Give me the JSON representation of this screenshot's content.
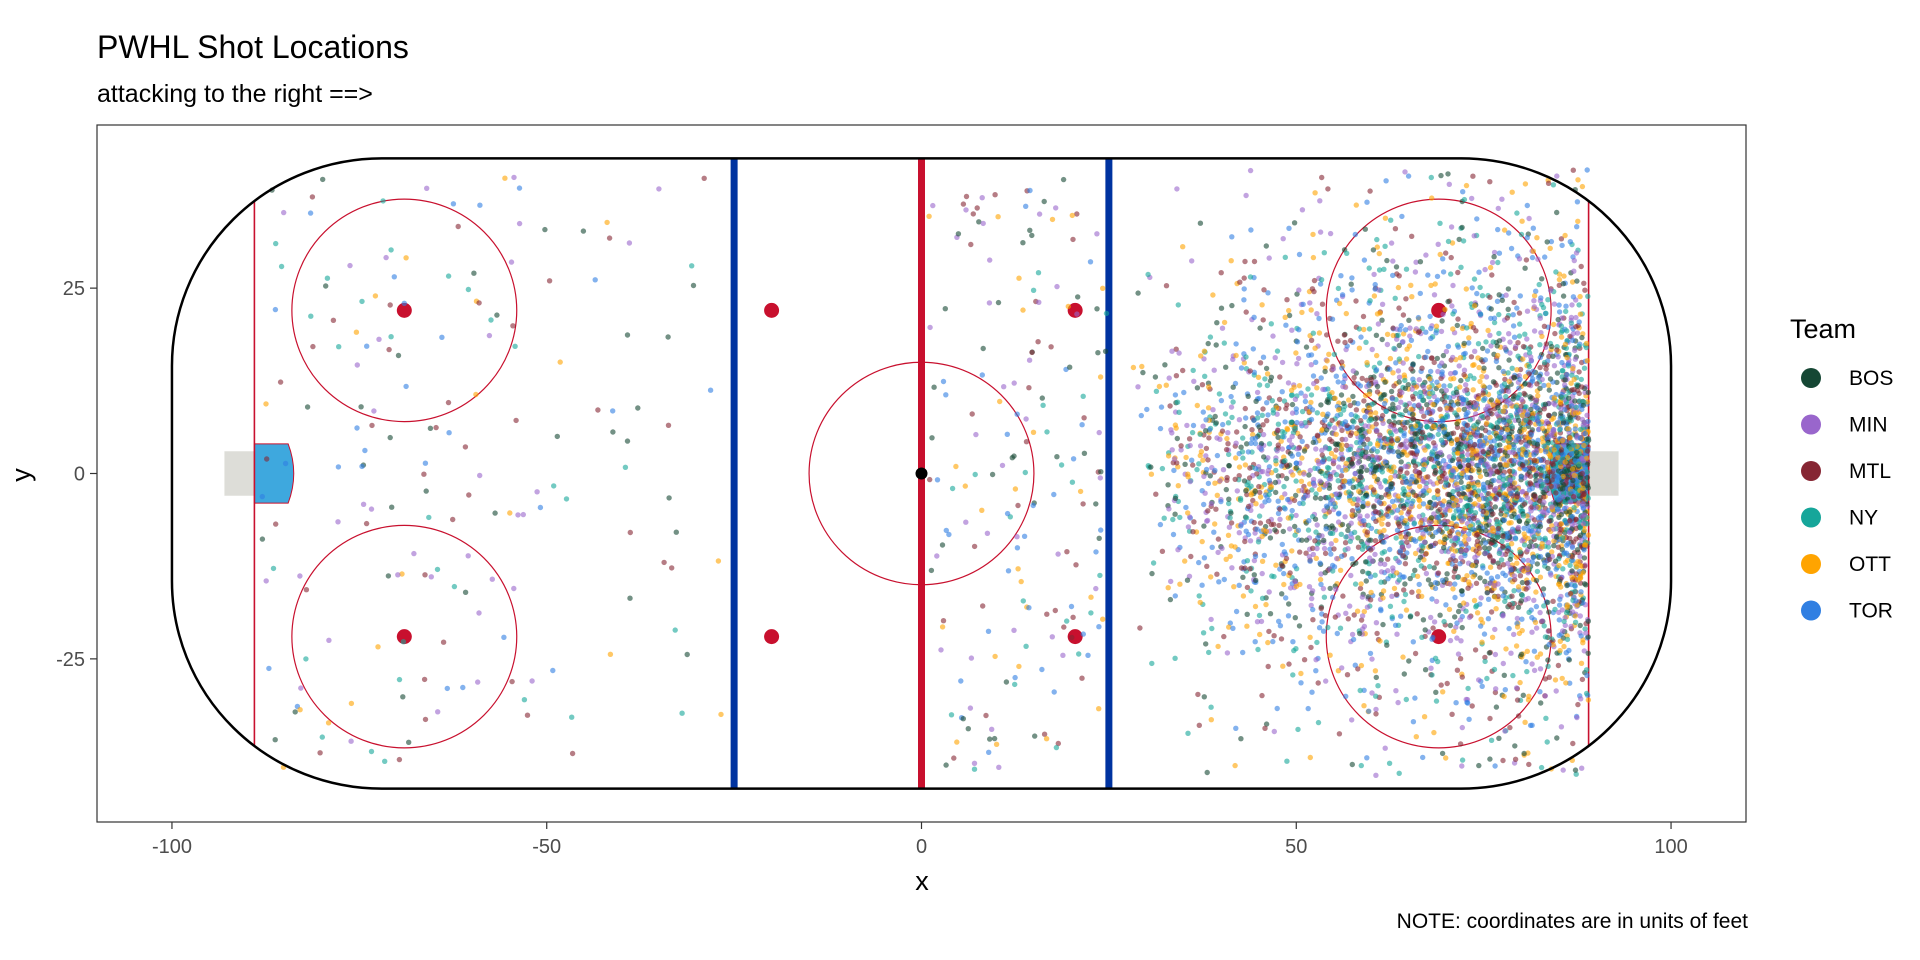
{
  "chart_data": {
    "type": "scatter",
    "title": "PWHL Shot Locations",
    "subtitle": "attacking to the right ==>",
    "xlabel": "x",
    "ylabel": "y",
    "caption": "NOTE: coordinates are in units of feet",
    "xlim": [
      -110,
      110
    ],
    "ylim": [
      -47,
      47
    ],
    "x_ticks": [
      -100,
      -50,
      0,
      50,
      100
    ],
    "x_tick_labels": [
      "-100",
      "-50",
      "0",
      "50",
      "100"
    ],
    "y_ticks": [
      -25,
      0,
      25
    ],
    "y_tick_labels": [
      "-25",
      "0",
      "25"
    ],
    "grid": false,
    "legend": {
      "title": "Team",
      "placement": "right",
      "entries": [
        {
          "label": "BOS",
          "color": "#154734"
        },
        {
          "label": "MIN",
          "color": "#9966CC"
        },
        {
          "label": "MTL",
          "color": "#862633"
        },
        {
          "label": "NY",
          "color": "#16A69A"
        },
        {
          "label": "OTT",
          "color": "#FFA400"
        },
        {
          "label": "TOR",
          "color": "#307FE2"
        }
      ]
    },
    "rink": {
      "boards_x": [
        -100,
        100
      ],
      "boards_y": [
        -42.5,
        42.5
      ],
      "corner_radius": 28,
      "goal_lines_x": [
        -89,
        89
      ],
      "blue_lines_x": [
        -25,
        25
      ],
      "center_line_x": 0,
      "center_circle": {
        "x": 0,
        "y": 0,
        "r": 15
      },
      "faceoff_circles": [
        {
          "x": -69,
          "y": 22,
          "r": 15
        },
        {
          "x": -69,
          "y": -22,
          "r": 15
        },
        {
          "x": 69,
          "y": 22,
          "r": 15
        },
        {
          "x": 69,
          "y": -22,
          "r": 15
        }
      ],
      "faceoff_dots": [
        {
          "x": -69,
          "y": 22
        },
        {
          "x": -69,
          "y": -22
        },
        {
          "x": -20,
          "y": 22
        },
        {
          "x": -20,
          "y": -22
        },
        {
          "x": 20.5,
          "y": 22
        },
        {
          "x": 20.5,
          "y": -22
        },
        {
          "x": 69,
          "y": 22
        },
        {
          "x": 69,
          "y": -22
        }
      ],
      "center_dot": {
        "x": 0,
        "y": 0
      },
      "colors": {
        "red": "#C8102E",
        "blue": "#0033A0",
        "crease": "#3EA8DE",
        "net": "#DDDDD8",
        "boards": "#000000"
      }
    },
    "series_seed": 20240531,
    "series_point_counts": {
      "BOS": 900,
      "MIN": 1000,
      "MTL": 900,
      "NY": 900,
      "OTT": 900,
      "TOR": 1000
    }
  }
}
